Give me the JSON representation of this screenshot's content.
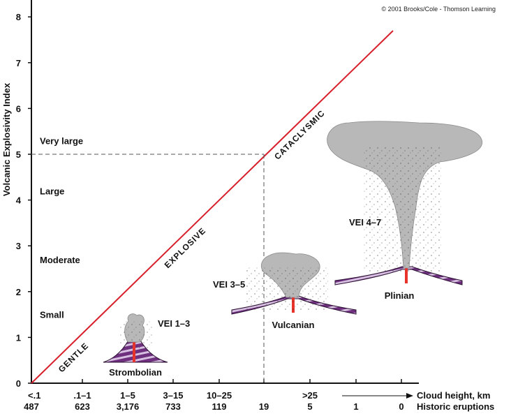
{
  "credit": "© 2001 Brooks/Cole - Thomson Learning",
  "y_axis": {
    "label": "Volcanic Explosivity Index",
    "ticks": [
      "0",
      "1",
      "2",
      "3",
      "4",
      "5",
      "6",
      "7",
      "8"
    ]
  },
  "size_classes": [
    {
      "label": "Small",
      "vei": 1.5
    },
    {
      "label": "Moderate",
      "vei": 2.7
    },
    {
      "label": "Large",
      "vei": 4.2
    },
    {
      "label": "Very large",
      "vei": 5.3
    }
  ],
  "diagonal_labels": [
    "GENTLE",
    "EXPLOSIVE",
    "CATACLYSMIC"
  ],
  "threshold_vei": 5,
  "cloud_height": {
    "label": "Cloud height, km",
    "values": [
      "<.1",
      ".1–1",
      "1–5",
      "3–15",
      "10–25",
      "",
      ">25",
      "",
      ""
    ]
  },
  "historic": {
    "label": "Historic eruptions",
    "values": [
      "487",
      "623",
      "3,176",
      "733",
      "119",
      "19",
      "5",
      "1",
      "0"
    ]
  },
  "eruption_types": [
    {
      "name": "Strombolian",
      "vei_label": "VEI 1–3"
    },
    {
      "name": "Vulcanian",
      "vei_label": "VEI 3–5"
    },
    {
      "name": "Plinian",
      "vei_label": "VEI 4–7"
    }
  ],
  "colors": {
    "diagonal": "#d8202c",
    "strata_purple": "#6d2f7e",
    "strata_light": "#d6bfe0",
    "ash": "#b8b8b8",
    "lava": "#e8332b"
  }
}
